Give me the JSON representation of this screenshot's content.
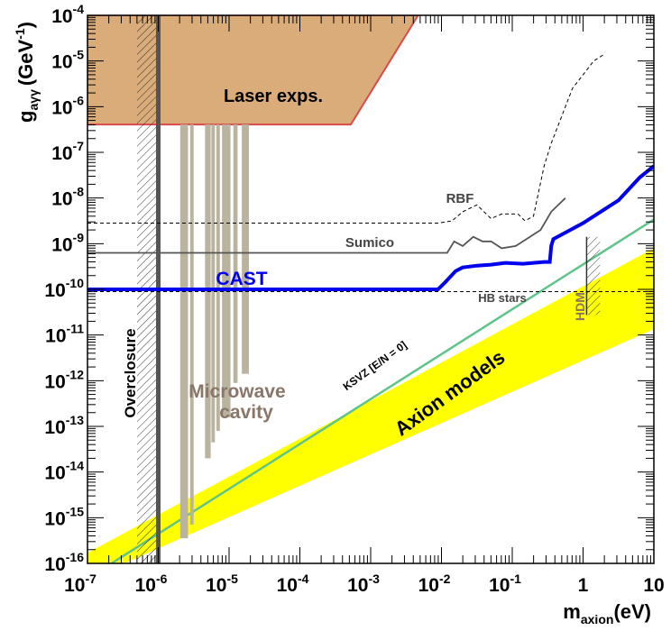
{
  "chart_data": {
    "type": "line",
    "title": "",
    "xlabel": "m",
    "xlabel_sub": "axion",
    "xlabel_unit": "(eV)",
    "ylabel": "g",
    "ylabel_sub": "aγγ",
    "ylabel_unit_pre": "(GeV",
    "ylabel_unit_sup": "-1",
    "ylabel_unit_post": ")",
    "xscale": "log",
    "yscale": "log",
    "xlim_exp": [
      -7,
      1
    ],
    "ylim_exp": [
      -16,
      -4
    ],
    "x_ticks": [
      {
        "exp": -7,
        "label": "10",
        "sup": "-7"
      },
      {
        "exp": -6,
        "label": "10",
        "sup": "-6"
      },
      {
        "exp": -5,
        "label": "10",
        "sup": "-5"
      },
      {
        "exp": -4,
        "label": "10",
        "sup": "-4"
      },
      {
        "exp": -3,
        "label": "10",
        "sup": "-3"
      },
      {
        "exp": -2,
        "label": "10",
        "sup": "-2"
      },
      {
        "exp": -1,
        "label": "10",
        "sup": "-1"
      },
      {
        "exp": 0,
        "label": "1",
        "sup": ""
      },
      {
        "exp": 1,
        "label": "10",
        "sup": ""
      }
    ],
    "y_ticks": [
      {
        "exp": -4,
        "label": "10",
        "sup": "-4"
      },
      {
        "exp": -5,
        "label": "10",
        "sup": "-5"
      },
      {
        "exp": -6,
        "label": "10",
        "sup": "-6"
      },
      {
        "exp": -7,
        "label": "10",
        "sup": "-7"
      },
      {
        "exp": -8,
        "label": "10",
        "sup": "-8"
      },
      {
        "exp": -9,
        "label": "10",
        "sup": "-9"
      },
      {
        "exp": -10,
        "label": "10",
        "sup": "-10"
      },
      {
        "exp": -11,
        "label": "10",
        "sup": "-11"
      },
      {
        "exp": -12,
        "label": "10",
        "sup": "-12"
      },
      {
        "exp": -13,
        "label": "10",
        "sup": "-13"
      },
      {
        "exp": -14,
        "label": "10",
        "sup": "-14"
      },
      {
        "exp": -15,
        "label": "10",
        "sup": "-15"
      },
      {
        "exp": -16,
        "label": "10",
        "sup": "-16"
      }
    ],
    "colors": {
      "laser": "#d9ac7a",
      "laser_edge": "#d94a4a",
      "axion_band": "#ffff00",
      "ksvz": "#5fc48a",
      "cast": "#0000ee",
      "sumico": "#555555",
      "rbf": "#000000",
      "cavity": "#bab39f",
      "cavity_label": "#8a7668",
      "hdm_label": "#8a7668",
      "overclosure_line": "#555555"
    },
    "regions": {
      "laser": {
        "label": "Laser exps.",
        "polygon": [
          [
            -7,
            -4
          ],
          [
            -2.33,
            -4
          ],
          [
            -3.28,
            -6.39
          ],
          [
            -7,
            -6.39
          ]
        ]
      },
      "axion_band": {
        "label": "Axion models",
        "polygon": [
          [
            -7,
            -15.77
          ],
          [
            -7,
            -16
          ],
          [
            -6.48,
            -16
          ],
          [
            1,
            -10.87
          ],
          [
            1,
            -9.1
          ]
        ]
      },
      "ksvz": {
        "label": "KSVZ [E/N = 0]",
        "points": [
          [
            -6.66,
            -16
          ],
          [
            1,
            -8.47
          ]
        ]
      },
      "overclosure": {
        "label": "Overclosure",
        "x_exp": -6.0,
        "hatch_from_exp": -6.3
      },
      "hdm": {
        "label": "HDM",
        "x_exp": [
          0.05,
          0.24
        ],
        "y_exp": [
          -10.56,
          -8.85
        ]
      },
      "cavity": {
        "label_line1": "Microwave",
        "label_line2": "cavity",
        "bars": [
          {
            "x_exp": [
              -5.69,
              -5.58
            ],
            "y_min_exp": -15.45
          },
          {
            "x_exp": [
              -5.55,
              -5.5
            ],
            "y_min_exp": -15.15
          },
          {
            "x_exp": [
              -5.34,
              -5.26
            ],
            "y_min_exp": -13.7
          },
          {
            "x_exp": [
              -5.25,
              -5.2
            ],
            "y_min_exp": -13.35
          },
          {
            "x_exp": [
              -5.18,
              -5.13
            ],
            "y_min_exp": -13.1
          },
          {
            "x_exp": [
              -5.1,
              -4.98
            ],
            "y_min_exp": -12.8
          },
          {
            "x_exp": [
              -4.94,
              -4.88
            ],
            "y_min_exp": -12.05
          },
          {
            "x_exp": [
              -4.82,
              -4.72
            ],
            "y_min_exp": -11.85
          }
        ]
      }
    },
    "series": [
      {
        "name": "CAST",
        "points": [
          [
            -7,
            -10
          ],
          [
            -2.05,
            -10
          ],
          [
            -1.95,
            -9.85
          ],
          [
            -1.8,
            -9.6
          ],
          [
            -1.7,
            -9.52
          ],
          [
            -1.5,
            -9.48
          ],
          [
            -1.3,
            -9.46
          ],
          [
            -1.1,
            -9.42
          ],
          [
            -0.85,
            -9.44
          ],
          [
            -0.7,
            -9.42
          ],
          [
            -0.55,
            -9.4
          ],
          [
            -0.47,
            -9.4
          ],
          [
            -0.45,
            -9.05
          ],
          [
            -0.42,
            -8.9
          ],
          [
            0,
            -8.55
          ],
          [
            0.5,
            -8.05
          ],
          [
            0.8,
            -7.55
          ],
          [
            1,
            -7.3
          ]
        ]
      },
      {
        "name": "Sumico",
        "points": [
          [
            -7,
            -9.2
          ],
          [
            -2.1,
            -9.2
          ],
          [
            -1.92,
            -9.2
          ],
          [
            -1.82,
            -8.95
          ],
          [
            -1.7,
            -9.05
          ],
          [
            -1.55,
            -8.85
          ],
          [
            -1.42,
            -8.95
          ],
          [
            -1.3,
            -8.95
          ],
          [
            -1.15,
            -9.1
          ],
          [
            -0.95,
            -9.05
          ],
          [
            -0.8,
            -8.9
          ],
          [
            -0.6,
            -8.7
          ],
          [
            -0.45,
            -8.3
          ],
          [
            -0.25,
            -8.0
          ]
        ]
      },
      {
        "name": "RBF",
        "points": [
          [
            -7,
            -8.55
          ],
          [
            -2.05,
            -8.55
          ],
          [
            -1.85,
            -8.5
          ],
          [
            -1.7,
            -8.3
          ],
          [
            -1.5,
            -8.15
          ],
          [
            -1.3,
            -8.45
          ],
          [
            -1.15,
            -8.35
          ],
          [
            -0.92,
            -8.35
          ],
          [
            -0.82,
            -8.5
          ],
          [
            -0.7,
            -8.4
          ],
          [
            -0.55,
            -7.3
          ],
          [
            -0.45,
            -6.8
          ],
          [
            -0.3,
            -6.2
          ],
          [
            -0.15,
            -5.6
          ],
          [
            0.15,
            -5.0
          ],
          [
            0.3,
            -4.85
          ]
        ]
      },
      {
        "name": "HB stars",
        "points": [
          [
            -7,
            -10.05
          ],
          [
            1,
            -10.05
          ]
        ]
      }
    ],
    "annotations": {
      "laser": "Laser exps.",
      "rbf": "RBF",
      "sumico": "Sumico",
      "cast": "CAST",
      "hb": "HB stars",
      "hdm": "HDM",
      "overclosure": "Overclosure",
      "cavity1": "Microwave",
      "cavity2": "cavity",
      "ksvz": "KSVZ [E/N = 0]",
      "axion": "Axion models"
    }
  }
}
